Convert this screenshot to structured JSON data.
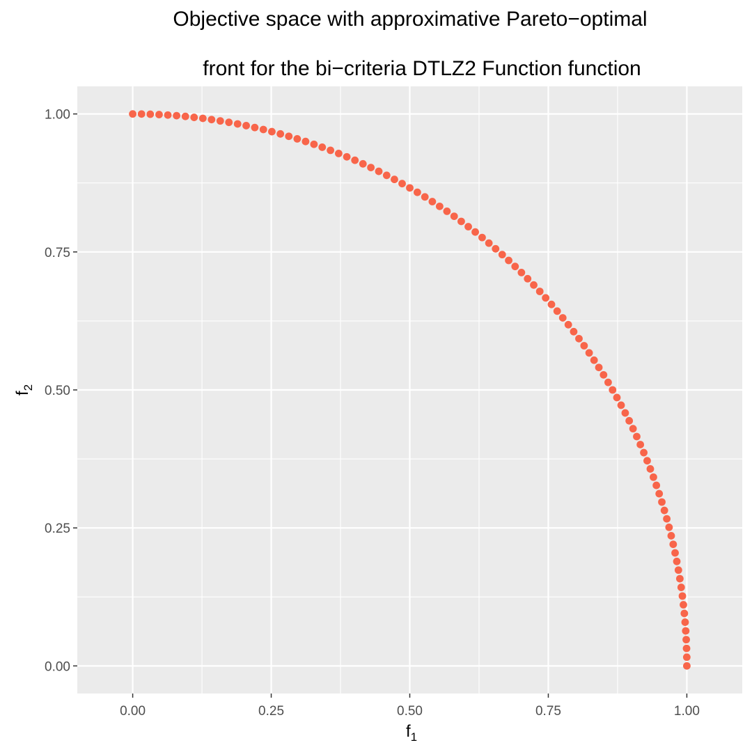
{
  "chart_data": {
    "type": "scatter",
    "title_lines": [
      "Objective space with approximative Pareto−optimal",
      "front for the bi−criteria DTLZ2 Function function"
    ],
    "xlabel": {
      "base": "f",
      "sub": "1"
    },
    "ylabel": {
      "base": "f",
      "sub": "2"
    },
    "xlim": [
      -0.1,
      1.1
    ],
    "ylim": [
      -0.05,
      1.05
    ],
    "x_ticks": [
      0,
      0.25,
      0.5,
      0.75,
      1
    ],
    "x_tick_labels": [
      "0.00",
      "0.25",
      "0.50",
      "0.75",
      "1.00"
    ],
    "y_ticks": [
      0,
      0.25,
      0.5,
      0.75,
      1
    ],
    "y_tick_labels": [
      "0.00",
      "0.25",
      "0.50",
      "0.75",
      "1.00"
    ],
    "grid": true,
    "point_color": "#f8654a",
    "panel_color": "#ebebeb",
    "grid_color": "#ffffff",
    "points": [
      [
        0.0,
        1.0
      ],
      [
        0.0159,
        0.9999
      ],
      [
        0.0317,
        0.9995
      ],
      [
        0.0476,
        0.9989
      ],
      [
        0.0634,
        0.998
      ],
      [
        0.0792,
        0.9969
      ],
      [
        0.0951,
        0.9955
      ],
      [
        0.1108,
        0.9938
      ],
      [
        0.1266,
        0.992
      ],
      [
        0.1423,
        0.9898
      ],
      [
        0.158,
        0.9874
      ],
      [
        0.1736,
        0.9848
      ],
      [
        0.1893,
        0.9819
      ],
      [
        0.2048,
        0.9788
      ],
      [
        0.2203,
        0.9754
      ],
      [
        0.2358,
        0.9718
      ],
      [
        0.2511,
        0.9679
      ],
      [
        0.2665,
        0.9638
      ],
      [
        0.2817,
        0.9595
      ],
      [
        0.2969,
        0.9549
      ],
      [
        0.312,
        0.9501
      ],
      [
        0.3271,
        0.945
      ],
      [
        0.342,
        0.9397
      ],
      [
        0.3569,
        0.9341
      ],
      [
        0.3717,
        0.9284
      ],
      [
        0.3864,
        0.9223
      ],
      [
        0.401,
        0.9161
      ],
      [
        0.4155,
        0.9096
      ],
      [
        0.4298,
        0.9029
      ],
      [
        0.4441,
        0.896
      ],
      [
        0.4583,
        0.8888
      ],
      [
        0.4723,
        0.8814
      ],
      [
        0.4862,
        0.8738
      ],
      [
        0.5,
        0.866
      ],
      [
        0.5137,
        0.858
      ],
      [
        0.5273,
        0.8497
      ],
      [
        0.5407,
        0.8412
      ],
      [
        0.5539,
        0.8326
      ],
      [
        0.5671,
        0.8237
      ],
      [
        0.5801,
        0.8146
      ],
      [
        0.5929,
        0.8053
      ],
      [
        0.6056,
        0.7958
      ],
      [
        0.6182,
        0.7861
      ],
      [
        0.6306,
        0.7761
      ],
      [
        0.6428,
        0.766
      ],
      [
        0.6549,
        0.7557
      ],
      [
        0.6668,
        0.7452
      ],
      [
        0.6785,
        0.7346
      ],
      [
        0.6901,
        0.7237
      ],
      [
        0.7015,
        0.7127
      ],
      [
        0.7127,
        0.7015
      ],
      [
        0.7237,
        0.6901
      ],
      [
        0.7346,
        0.6785
      ],
      [
        0.7452,
        0.6668
      ],
      [
        0.7557,
        0.6549
      ],
      [
        0.766,
        0.6428
      ],
      [
        0.7761,
        0.6306
      ],
      [
        0.7861,
        0.6182
      ],
      [
        0.7958,
        0.6056
      ],
      [
        0.8053,
        0.5929
      ],
      [
        0.8146,
        0.5801
      ],
      [
        0.8237,
        0.5671
      ],
      [
        0.8326,
        0.5539
      ],
      [
        0.8412,
        0.5407
      ],
      [
        0.8497,
        0.5273
      ],
      [
        0.858,
        0.5137
      ],
      [
        0.866,
        0.5
      ],
      [
        0.8738,
        0.4862
      ],
      [
        0.8814,
        0.4723
      ],
      [
        0.8888,
        0.4583
      ],
      [
        0.896,
        0.4441
      ],
      [
        0.9029,
        0.4298
      ],
      [
        0.9096,
        0.4155
      ],
      [
        0.9161,
        0.401
      ],
      [
        0.9223,
        0.3864
      ],
      [
        0.9284,
        0.3717
      ],
      [
        0.9341,
        0.3569
      ],
      [
        0.9397,
        0.342
      ],
      [
        0.945,
        0.3271
      ],
      [
        0.9501,
        0.312
      ],
      [
        0.9549,
        0.2969
      ],
      [
        0.9595,
        0.2817
      ],
      [
        0.9638,
        0.2665
      ],
      [
        0.9679,
        0.2511
      ],
      [
        0.9718,
        0.2358
      ],
      [
        0.9754,
        0.2203
      ],
      [
        0.9788,
        0.2048
      ],
      [
        0.9819,
        0.1893
      ],
      [
        0.9848,
        0.1736
      ],
      [
        0.9874,
        0.158
      ],
      [
        0.9898,
        0.1423
      ],
      [
        0.992,
        0.1266
      ],
      [
        0.9938,
        0.1108
      ],
      [
        0.9955,
        0.0951
      ],
      [
        0.9969,
        0.0792
      ],
      [
        0.998,
        0.0634
      ],
      [
        0.9989,
        0.0476
      ],
      [
        0.9995,
        0.0317
      ],
      [
        0.9999,
        0.0159
      ],
      [
        1.0,
        0.0
      ]
    ]
  }
}
